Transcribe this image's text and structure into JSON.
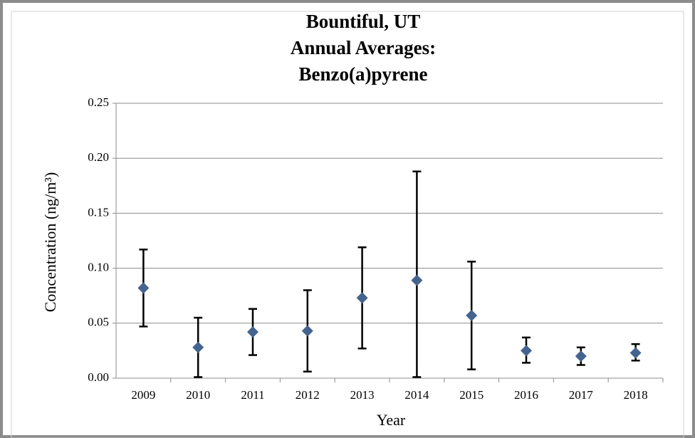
{
  "chart_data": {
    "type": "scatter",
    "title": [
      "Bountiful, UT",
      "Annual Averages:",
      "Benzo(a)pyrene"
    ],
    "x_label": "Year",
    "y_label": "Concentration (ng/m³)",
    "categories": [
      "2009",
      "2010",
      "2011",
      "2012",
      "2013",
      "2014",
      "2015",
      "2016",
      "2017",
      "2018"
    ],
    "values": [
      0.082,
      0.028,
      0.042,
      0.043,
      0.073,
      0.089,
      0.057,
      0.025,
      0.02,
      0.023
    ],
    "error_plus": [
      0.035,
      0.027,
      0.021,
      0.037,
      0.046,
      0.099,
      0.049,
      0.012,
      0.008,
      0.008
    ],
    "error_minus": [
      0.035,
      0.027,
      0.021,
      0.037,
      0.046,
      0.088,
      0.049,
      0.011,
      0.008,
      0.007
    ],
    "color": "#44638f",
    "ylim": [
      0,
      0.25
    ],
    "yticks": [
      {
        "value": 0,
        "label": "0.00"
      },
      0.05,
      {
        "value": 0.1,
        "label": "0.10"
      },
      0.15,
      {
        "value": 0.2,
        "label": "0.20"
      },
      0.25
    ],
    "grid": true
  }
}
